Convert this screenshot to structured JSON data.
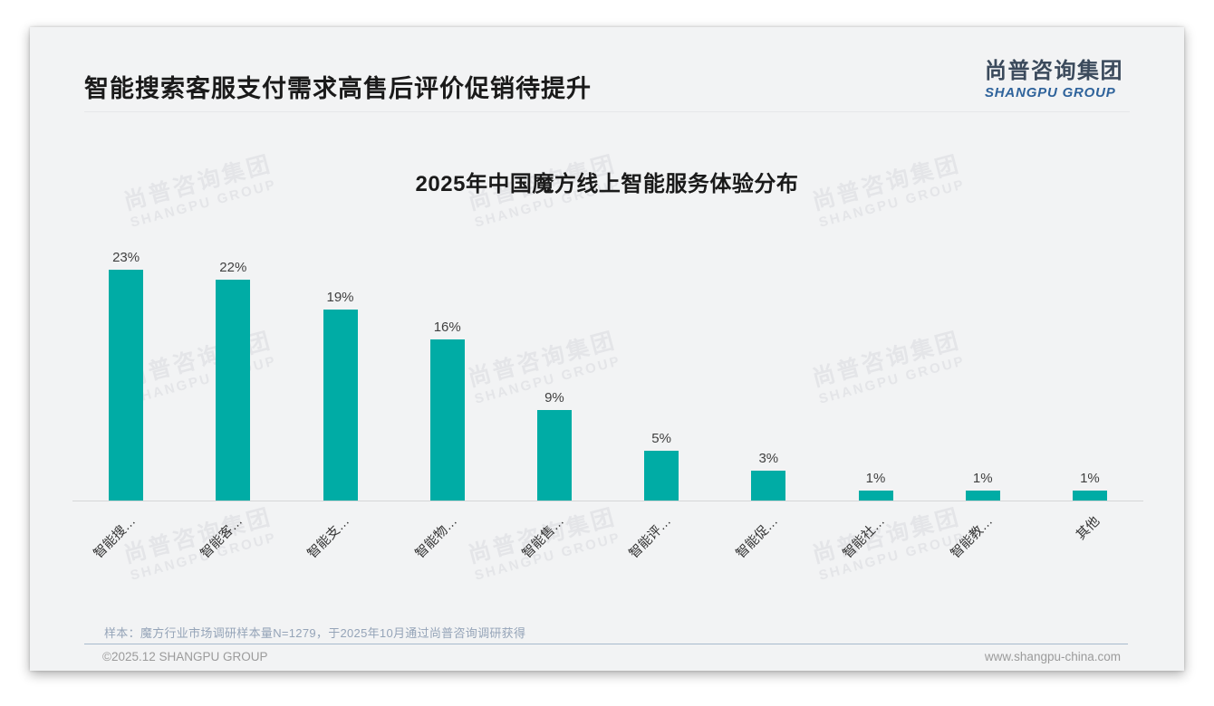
{
  "page": {
    "header": {
      "title": "智能搜索客服支付需求高售后评价促销待提升",
      "logo": {
        "zh": "尚普咨询集团",
        "en": "SHANGPU GROUP"
      }
    },
    "watermark": {
      "zh": "尚普咨询集团",
      "en": "SHANGPU GROUP"
    },
    "footer": {
      "note": "样本：魔方行业市场调研样本量N=1279，于2025年10月通过尚普咨询调研获得",
      "copyright": "©2025.12 SHANGPU GROUP",
      "website": "www.shangpu-china.com"
    },
    "colors": {
      "bar": "#00ACA5",
      "logo_blue": "#2f639b",
      "card_bg": "#f2f3f4"
    }
  },
  "chart_data": {
    "type": "bar",
    "title": "2025年中国魔方线上智能服务体验分布",
    "categories": [
      "智能搜…",
      "智能客…",
      "智能支…",
      "智能物…",
      "智能售…",
      "智能评…",
      "智能促…",
      "智能社…",
      "智能教…",
      "其他"
    ],
    "values": [
      23,
      22,
      19,
      16,
      9,
      5,
      3,
      1,
      1,
      1
    ],
    "value_labels": [
      "23%",
      "22%",
      "19%",
      "16%",
      "9%",
      "5%",
      "3%",
      "1%",
      "1%",
      "1%"
    ],
    "xlabel": "",
    "ylabel": "",
    "ylim": [
      0,
      25.5
    ],
    "grid": false,
    "legend": false,
    "bar_color": "#00ACA5"
  }
}
